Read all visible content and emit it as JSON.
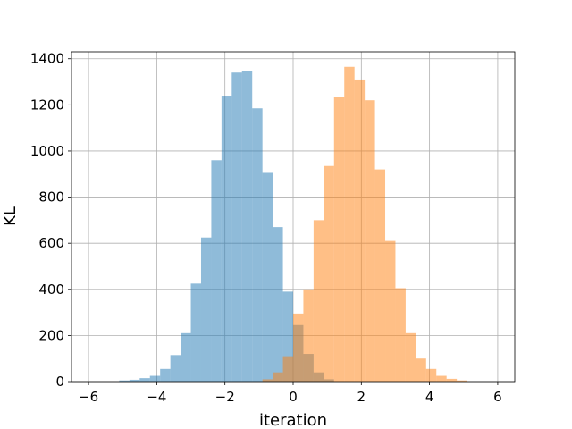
{
  "chart_data": {
    "type": "bar",
    "title": "",
    "xlabel": "iteration",
    "ylabel": "KL",
    "xlim": [
      -6.5,
      6.5
    ],
    "ylim": [
      0,
      1430
    ],
    "x_ticks": [
      -6,
      -4,
      -2,
      0,
      2,
      4,
      6
    ],
    "x_tick_labels": [
      "−6",
      "−4",
      "−2",
      "0",
      "2",
      "4",
      "6"
    ],
    "y_ticks": [
      0,
      200,
      400,
      600,
      800,
      1000,
      1200,
      1400
    ],
    "y_tick_labels": [
      "0",
      "200",
      "400",
      "600",
      "800",
      "1000",
      "1200",
      "1400"
    ],
    "grid": true,
    "bin_width": 0.3,
    "series": [
      {
        "color": "#1f77b4",
        "opacity": 0.5,
        "bins": [
          {
            "x0": -5.1,
            "count": 5
          },
          {
            "x0": -4.8,
            "count": 8
          },
          {
            "x0": -4.5,
            "count": 15
          },
          {
            "x0": -4.2,
            "count": 25
          },
          {
            "x0": -3.9,
            "count": 55
          },
          {
            "x0": -3.6,
            "count": 115
          },
          {
            "x0": -3.3,
            "count": 210
          },
          {
            "x0": -3.0,
            "count": 425
          },
          {
            "x0": -2.7,
            "count": 625
          },
          {
            "x0": -2.4,
            "count": 960
          },
          {
            "x0": -2.1,
            "count": 1240
          },
          {
            "x0": -1.8,
            "count": 1340
          },
          {
            "x0": -1.5,
            "count": 1345
          },
          {
            "x0": -1.2,
            "count": 1185
          },
          {
            "x0": -0.9,
            "count": 905
          },
          {
            "x0": -0.6,
            "count": 670
          },
          {
            "x0": -0.3,
            "count": 390
          },
          {
            "x0": 0.0,
            "count": 245
          },
          {
            "x0": 0.3,
            "count": 120
          },
          {
            "x0": 0.6,
            "count": 40
          },
          {
            "x0": 0.9,
            "count": 10
          }
        ]
      },
      {
        "color": "#ff7f0e",
        "opacity": 0.5,
        "bins": [
          {
            "x0": -0.9,
            "count": 10
          },
          {
            "x0": -0.6,
            "count": 40
          },
          {
            "x0": -0.3,
            "count": 110
          },
          {
            "x0": 0.0,
            "count": 295
          },
          {
            "x0": 0.3,
            "count": 400
          },
          {
            "x0": 0.6,
            "count": 700
          },
          {
            "x0": 0.9,
            "count": 935
          },
          {
            "x0": 1.2,
            "count": 1235
          },
          {
            "x0": 1.5,
            "count": 1365
          },
          {
            "x0": 1.8,
            "count": 1310
          },
          {
            "x0": 2.1,
            "count": 1220
          },
          {
            "x0": 2.4,
            "count": 920
          },
          {
            "x0": 2.7,
            "count": 610
          },
          {
            "x0": 3.0,
            "count": 405
          },
          {
            "x0": 3.3,
            "count": 210
          },
          {
            "x0": 3.6,
            "count": 100
          },
          {
            "x0": 3.9,
            "count": 55
          },
          {
            "x0": 4.2,
            "count": 25
          },
          {
            "x0": 4.5,
            "count": 12
          },
          {
            "x0": 4.8,
            "count": 5
          }
        ]
      }
    ]
  }
}
